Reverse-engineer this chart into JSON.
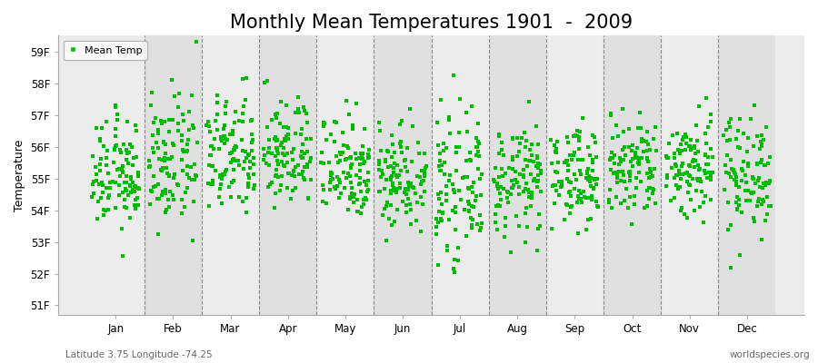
{
  "title": "Monthly Mean Temperatures 1901  -  2009",
  "ylabel": "Temperature",
  "xlabel_labels": [
    "Jan",
    "Feb",
    "Mar",
    "Apr",
    "May",
    "Jun",
    "Jul",
    "Aug",
    "Sep",
    "Oct",
    "Nov",
    "Dec"
  ],
  "ytick_labels": [
    "51F",
    "52F",
    "53F",
    "54F",
    "55F",
    "56F",
    "57F",
    "58F",
    "59F"
  ],
  "ytick_values": [
    51,
    52,
    53,
    54,
    55,
    56,
    57,
    58,
    59
  ],
  "ylim": [
    50.7,
    59.5
  ],
  "xlim": [
    0.0,
    13.0
  ],
  "bg_color_light": "#ececec",
  "bg_color_dark": "#e0e0e0",
  "dot_color": "#00bb00",
  "marker": "s",
  "marker_size": 2.2,
  "legend_label": "Mean Temp",
  "footer_left": "Latitude 3.75 Longitude -74.25",
  "footer_right": "worldspecies.org",
  "title_fontsize": 15,
  "axis_label_fontsize": 9,
  "tick_fontsize": 8.5,
  "n_years": 109,
  "month_means": [
    55.1,
    55.5,
    55.7,
    55.8,
    55.4,
    55.1,
    54.7,
    54.9,
    55.1,
    55.3,
    55.4,
    55.2
  ],
  "month_stds": [
    0.85,
    1.0,
    0.95,
    0.85,
    0.85,
    0.85,
    1.05,
    0.85,
    0.75,
    0.85,
    0.85,
    0.95
  ]
}
